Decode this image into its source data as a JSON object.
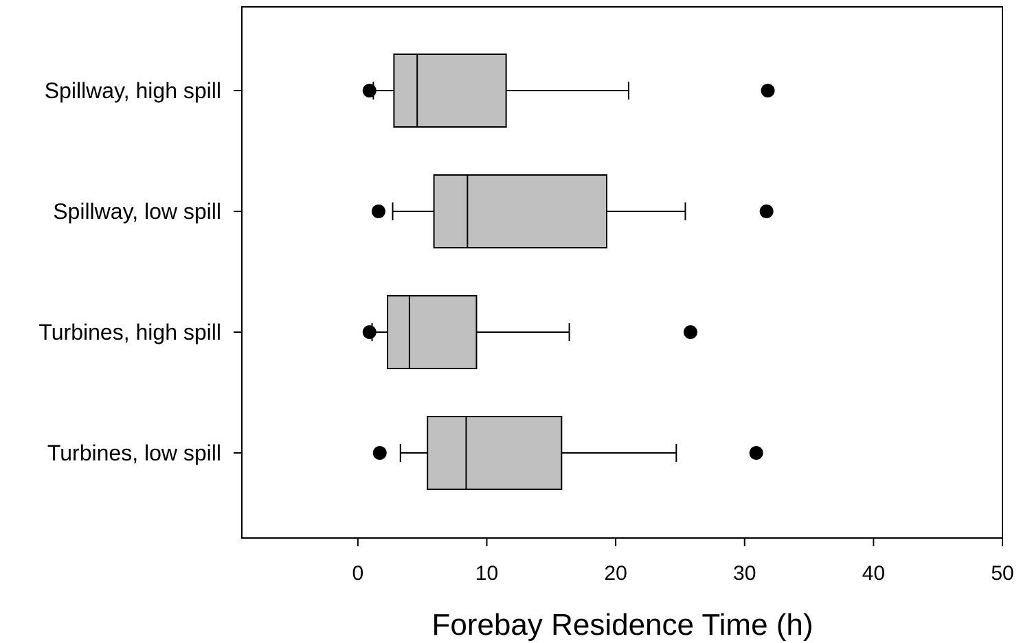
{
  "chart_data": {
    "type": "box",
    "orientation": "horizontal",
    "xlabel": "Forebay Residence Time (h)",
    "ylabel": "",
    "xlim": [
      -9,
      50
    ],
    "xticks": [
      0,
      10,
      20,
      30,
      40,
      50
    ],
    "grid": false,
    "colors": {
      "box_fill": "#c0c0c0",
      "outline": "#000000",
      "outlier": "#000000"
    },
    "categories": [
      "Spillway, high spill",
      "Spillway, low spill",
      "Turbines, high spill",
      "Turbines, low spill"
    ],
    "series": [
      {
        "category": "Spillway, high spill",
        "whisker_low": 1.2,
        "q1": 2.8,
        "median": 4.6,
        "q3": 11.5,
        "whisker_high": 21.0,
        "outliers": [
          0.9,
          31.8
        ]
      },
      {
        "category": "Spillway, low spill",
        "whisker_low": 2.7,
        "q1": 5.9,
        "median": 8.5,
        "q3": 19.3,
        "whisker_high": 25.4,
        "outliers": [
          1.6,
          31.7
        ]
      },
      {
        "category": "Turbines, high spill",
        "whisker_low": 1.1,
        "q1": 2.3,
        "median": 4.0,
        "q3": 9.2,
        "whisker_high": 16.4,
        "outliers": [
          0.9,
          25.8
        ]
      },
      {
        "category": "Turbines, low spill",
        "whisker_low": 3.3,
        "q1": 5.4,
        "median": 8.4,
        "q3": 15.8,
        "whisker_high": 24.7,
        "outliers": [
          1.7,
          30.9
        ]
      }
    ]
  }
}
